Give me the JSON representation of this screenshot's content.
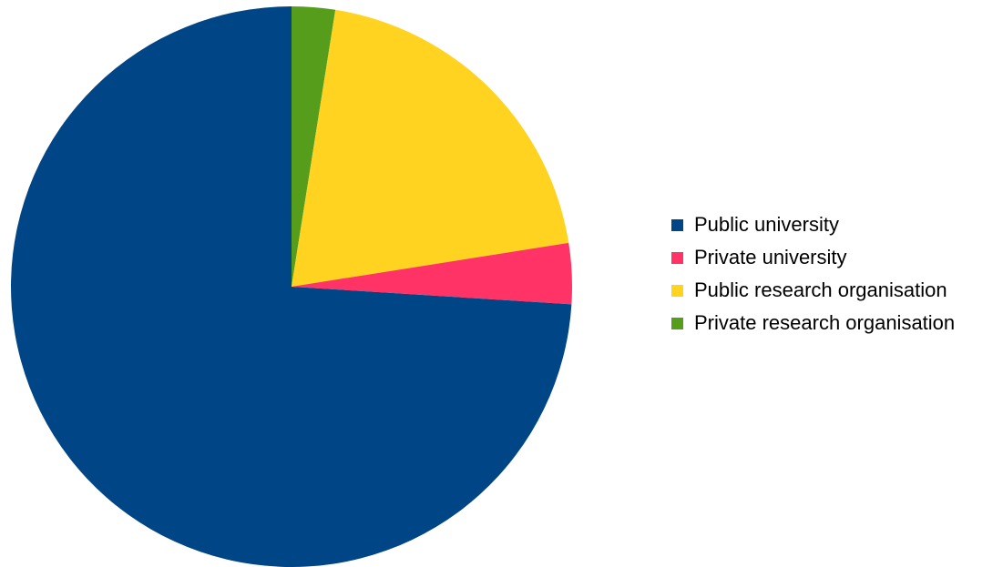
{
  "chart_data": {
    "type": "pie",
    "title": "",
    "start_angle_deg": 0,
    "direction": "clockwise",
    "legend_position": "right",
    "series": [
      {
        "name": "Public university",
        "value": 74,
        "color": "#004586"
      },
      {
        "name": "Private university",
        "value": 3.5,
        "color": "#FF3366"
      },
      {
        "name": "Private research organisation",
        "value": 2.5,
        "color": "#579D1C"
      },
      {
        "name": "Public research organisation",
        "value": 20,
        "color": "#FFD320"
      }
    ],
    "slice_order": [
      "Private research organisation",
      "Public research organisation",
      "Private university",
      "Public university"
    ],
    "legend": [
      {
        "label": "Public university",
        "color": "#004586"
      },
      {
        "label": "Private university",
        "color": "#FF3366"
      },
      {
        "label": "Public research organisation",
        "color": "#FFD320"
      },
      {
        "label": "Private research organisation",
        "color": "#579D1C"
      }
    ]
  }
}
